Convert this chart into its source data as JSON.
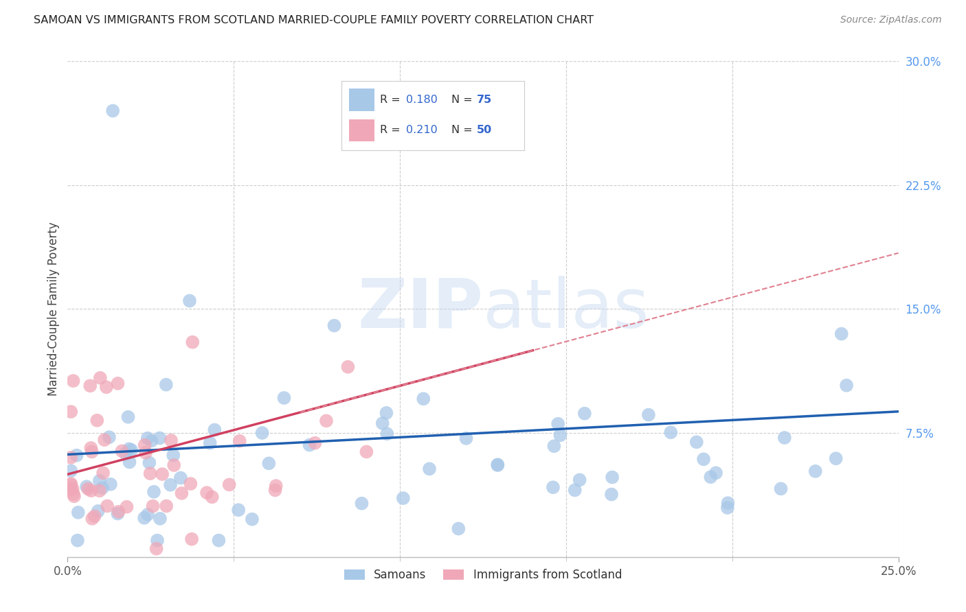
{
  "title": "SAMOAN VS IMMIGRANTS FROM SCOTLAND MARRIED-COUPLE FAMILY POVERTY CORRELATION CHART",
  "source": "Source: ZipAtlas.com",
  "ylabel": "Married-Couple Family Poverty",
  "watermark_zip": "ZIP",
  "watermark_atlas": "atlas",
  "xlim": [
    0.0,
    0.25
  ],
  "ylim": [
    0.0,
    0.3
  ],
  "yticklabels_right": [
    "7.5%",
    "15.0%",
    "22.5%",
    "30.0%"
  ],
  "yticks_right": [
    0.075,
    0.15,
    0.225,
    0.3
  ],
  "legend_labels": [
    "Samoans",
    "Immigrants from Scotland"
  ],
  "blue_color": "#a8c8e8",
  "pink_color": "#f0a8b8",
  "blue_R": 0.18,
  "blue_N": 75,
  "pink_R": 0.21,
  "pink_N": 50,
  "blue_line_color": "#2060b0",
  "pink_line_color": "#d04060",
  "pink_dash_color": "#e08090",
  "grid_color": "#cccccc",
  "background_color": "#ffffff",
  "title_color": "#222222",
  "source_color": "#888888",
  "ylabel_color": "#444444",
  "tick_label_color": "#555555",
  "right_tick_color": "#5599ee",
  "legend_r_n_color": "#3366cc",
  "legend_text_color": "#333333"
}
